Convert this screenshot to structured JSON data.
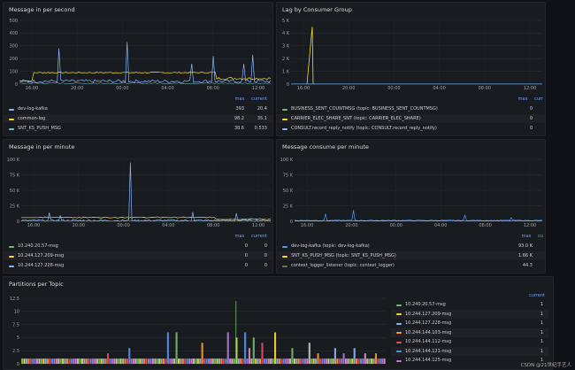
{
  "colors": {
    "green": "#73bf69",
    "yellow": "#fade2a",
    "blue": "#5794f2",
    "cyan": "#8ab8ff",
    "teal": "#72c8c8",
    "orange": "#ff9830",
    "red": "#f2495c",
    "purple": "#b877d9",
    "pink": "#e08ec4",
    "grey": "#c7c7c7"
  },
  "panels": {
    "mps": {
      "title": "Message in per second",
      "yticks": [
        "500",
        "400",
        "300",
        "200",
        "100",
        "0"
      ],
      "xticks": [
        "16:00",
        "20:00",
        "00:00",
        "04:00",
        "08:00",
        "12:00"
      ],
      "legend_head": [
        "max",
        "current"
      ],
      "legend": [
        {
          "name": "dev-log-kafka",
          "max": "393",
          "current": "20.4",
          "color": "#8ab8ff"
        },
        {
          "name": "common-log",
          "max": "98.2",
          "current": "35.1",
          "color": "#fade2a"
        },
        {
          "name": "SNT_KS_PUSH_MSG",
          "max": "38.6",
          "current": "0.533",
          "color": "#72c8c8"
        }
      ]
    },
    "lag": {
      "title": "Lag by Consumer Group",
      "yticks": [
        "5 K",
        "4 K",
        "3 K",
        "2 K",
        "1 K",
        "0"
      ],
      "xticks": [
        "16:00",
        "20:00",
        "00:00",
        "04:00",
        "08:00",
        "12:00"
      ],
      "legend_head": [
        "max",
        "curr"
      ],
      "legend": [
        {
          "name": "BUSINESS_SENT_COUNTMSG (topic: BUSINESS_SENT_COUNTMSG)",
          "max": "0",
          "current": "",
          "color": "#73bf69"
        },
        {
          "name": "CARRIER_ELEC_SHARE_SNT (topic: CARRIER_ELEC_SHARE)",
          "max": "0",
          "current": "",
          "color": "#fade2a"
        },
        {
          "name": "CONSULT.record_reply_notify (topic: CONSULT.record_reply_notify)",
          "max": "0",
          "current": "",
          "color": "#8ab8ff"
        }
      ]
    },
    "mpm": {
      "title": "Message in per minute",
      "yticks": [
        "100 K",
        "75 K",
        "50 K",
        "25 K",
        "0"
      ],
      "xticks": [
        "16:00",
        "20:00",
        "00:00",
        "04:00",
        "08:00",
        "12:00"
      ],
      "legend_head": [
        "max",
        "current"
      ],
      "legend": [
        {
          "name": "10.240.20.57-msg",
          "max": "0",
          "current": "0",
          "color": "#73bf69"
        },
        {
          "name": "10.244.127.209-msg",
          "max": "0",
          "current": "0",
          "color": "#fade2a"
        },
        {
          "name": "10.244.127.228-msg",
          "max": "0",
          "current": "0",
          "color": "#8ab8ff"
        }
      ]
    },
    "consume": {
      "title": "Message consume per minute",
      "yticks": [
        "100 K",
        "75 K",
        "50 K",
        "25 K",
        "0"
      ],
      "xticks": [
        "16:00",
        "20:00",
        "00:00",
        "04:00",
        "08:00",
        "12:00"
      ],
      "legend_head": [
        "max",
        "cu"
      ],
      "legend": [
        {
          "name": "dev-log-kafka (topic: dev-log-kafka)",
          "max": "93.0 K",
          "current": "",
          "color": "#5794f2"
        },
        {
          "name": "SNT_KS_PUSH_MSG (topic: SNT_KS_PUSH_MSG)",
          "max": "1.66 K",
          "current": "",
          "color": "#fade2a"
        },
        {
          "name": "context_logger_listener (topic: context_logger)",
          "max": "44.3",
          "current": "",
          "color": "#6e6e6e"
        }
      ]
    },
    "partitions": {
      "title": "Partitions per Topic",
      "yticks": [
        "12.5",
        "10",
        "7.5",
        "5",
        "2.5",
        "0"
      ],
      "legend_head": [
        "current"
      ],
      "legend": [
        {
          "name": "10.240.20.57-msg",
          "current": "1",
          "color": "#73bf69"
        },
        {
          "name": "10.244.127.209-msg",
          "current": "1",
          "color": "#fade2a"
        },
        {
          "name": "10.244.127.228-msg",
          "current": "1",
          "color": "#8ab8ff"
        },
        {
          "name": "10.244.144.103-msg",
          "current": "1",
          "color": "#ff9830"
        },
        {
          "name": "10.244.144.112-msg",
          "current": "1",
          "color": "#f2495c"
        },
        {
          "name": "10.244.144.121-msg",
          "current": "1",
          "color": "#5794f2"
        },
        {
          "name": "10.244.144.125-msg",
          "current": "1",
          "color": "#b877d9"
        }
      ]
    }
  },
  "watermark": "CSDN @21世纪手艺人"
}
